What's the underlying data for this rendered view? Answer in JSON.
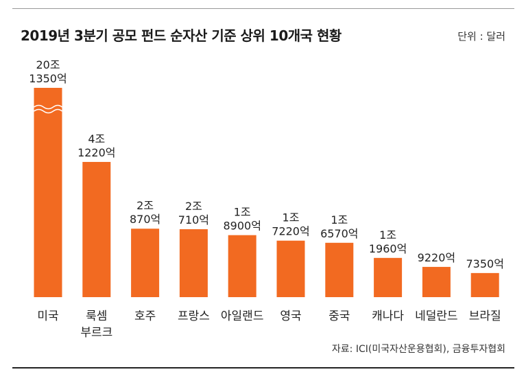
{
  "title": "2019년 3분기 공모 펀드 순자산 기준 상위 10개국 현황",
  "unit": "단위 : 달러",
  "source": "자료: ICI(미국자산운용협회), 금융투자협회",
  "colors": {
    "bar": "#f26a21",
    "text": "#222222"
  },
  "chart_data": {
    "type": "bar",
    "title": "2019년 3분기 공모 펀드 순자산 기준 상위 10개국 현황",
    "unit": "달러",
    "axis_break": true,
    "categories": [
      {
        "lines": [
          "미국"
        ]
      },
      {
        "lines": [
          "룩셈",
          "부르크"
        ]
      },
      {
        "lines": [
          "호주"
        ]
      },
      {
        "lines": [
          "프랑스"
        ]
      },
      {
        "lines": [
          "아일랜드"
        ]
      },
      {
        "lines": [
          "영국"
        ]
      },
      {
        "lines": [
          "중국"
        ]
      },
      {
        "lines": [
          "캐나다"
        ]
      },
      {
        "lines": [
          "네덜란드"
        ]
      },
      {
        "lines": [
          "브라질"
        ]
      }
    ],
    "values": [
      201350,
      41220,
      20870,
      20710,
      18900,
      17220,
      16570,
      11960,
      9220,
      7350
    ],
    "value_unit": "억 달러",
    "labels": [
      [
        "20조",
        "1350억"
      ],
      [
        "4조",
        "1220억"
      ],
      [
        "2조",
        "870억"
      ],
      [
        "2조",
        "710억"
      ],
      [
        "1조",
        "8900억"
      ],
      [
        "1조",
        "7220억"
      ],
      [
        "1조",
        "6570억"
      ],
      [
        "1조",
        "1960억"
      ],
      [
        "9220억"
      ],
      [
        "7350억"
      ]
    ]
  }
}
